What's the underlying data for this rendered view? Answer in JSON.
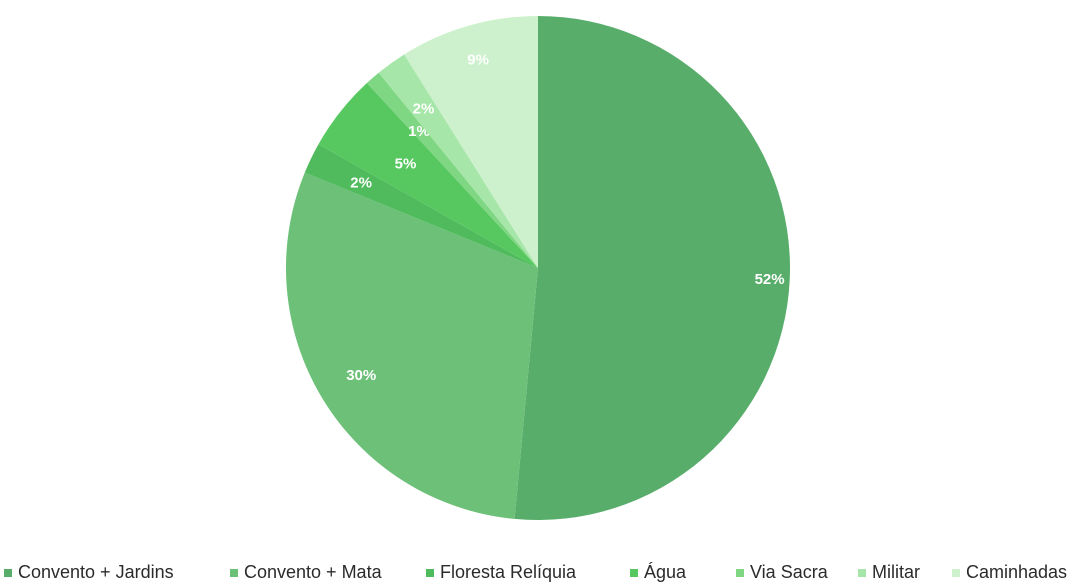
{
  "chart_data": {
    "type": "pie",
    "title": "",
    "labels": [
      "Convento + Jardins",
      "Convento + Mata",
      "Floresta Relíquia",
      "Água",
      "Via Sacra",
      "Militar",
      "Caminhadas"
    ],
    "values": [
      52,
      30,
      2,
      5,
      1,
      2,
      9
    ],
    "value_labels": [
      "52%",
      "30%",
      "2%",
      "5%",
      "1%",
      "2%",
      "9%"
    ],
    "colors": [
      "#59ad6b",
      "#6cc077",
      "#4fbb5c",
      "#56c85f",
      "#7fd683",
      "#a6e6a8",
      "#ccf1cc"
    ],
    "legend_position": "bottom"
  }
}
